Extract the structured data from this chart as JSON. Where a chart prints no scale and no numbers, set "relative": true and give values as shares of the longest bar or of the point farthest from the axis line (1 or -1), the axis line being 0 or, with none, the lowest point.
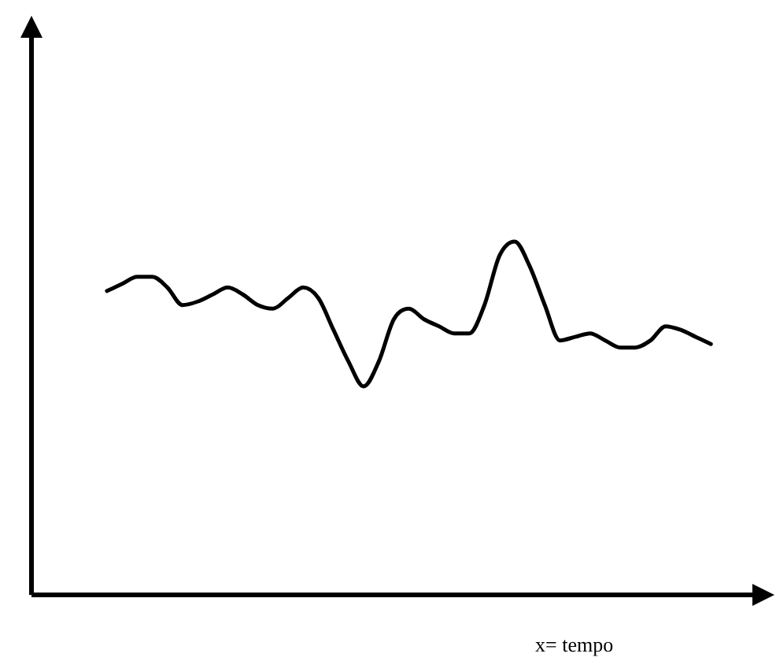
{
  "chart_data": {
    "type": "line",
    "xlabel": "x= tempo",
    "relative": true,
    "marker": "none",
    "legend": false,
    "categories": [
      null,
      null,
      null,
      null,
      null,
      null,
      null,
      null,
      null,
      null,
      null,
      null,
      null,
      null,
      null,
      null,
      null,
      null,
      null,
      null,
      null,
      null,
      null,
      null,
      null,
      null,
      null,
      null,
      null,
      null,
      null,
      null,
      null,
      null,
      null,
      null,
      null,
      null,
      null,
      null,
      null
    ],
    "series": [
      {
        "color": "#000000",
        "values": [
          0.86,
          0.88,
          0.9,
          0.9,
          0.87,
          0.82,
          0.83,
          0.85,
          0.87,
          0.85,
          0.82,
          0.81,
          0.84,
          0.87,
          0.84,
          0.75,
          0.66,
          0.59,
          0.66,
          0.78,
          0.81,
          0.78,
          0.76,
          0.74,
          0.74,
          0.82,
          0.96,
          1,
          0.93,
          0.82,
          0.72,
          0.73,
          0.74,
          0.72,
          0.7,
          0.7,
          0.72,
          0.76,
          0.75,
          0.73,
          0.71
        ]
      }
    ]
  }
}
